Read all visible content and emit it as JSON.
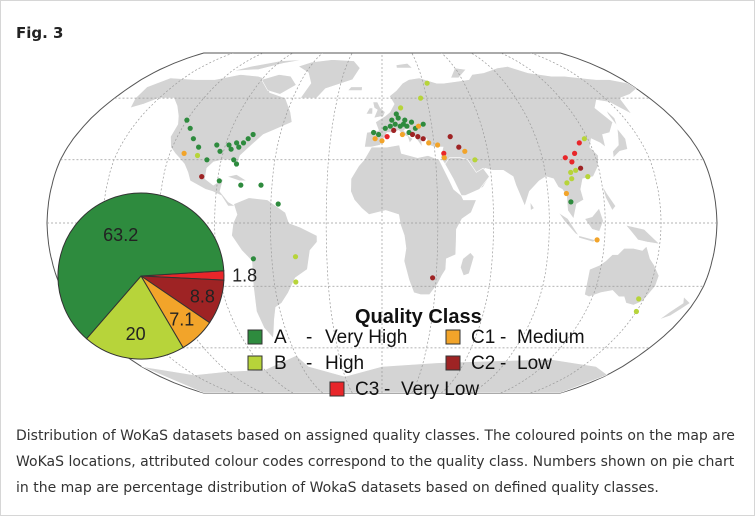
{
  "figure_label": "Fig. 3",
  "caption": "Distribution of WoKaS datasets based on assigned quality classes. The coloured points on the map are WoKaS locations, attributed colour codes correspond to the quality class. Numbers shown on pie chart in the map are percentage distribution of WokaS datasets based on defined quality classes.",
  "map": {
    "projection": "robinson",
    "graticule": true,
    "land_color": "#d4d4d4",
    "ocean_color": "#ffffff"
  },
  "legend": {
    "title": "Quality Class",
    "items": [
      {
        "code": "A",
        "name": "Very High",
        "color": "#2e8b3e",
        "sep": "-"
      },
      {
        "code": "B",
        "name": "High",
        "color": "#b7d43a",
        "sep": "-"
      },
      {
        "code": "C1",
        "name": "Medium",
        "color": "#f2a42a",
        "sep": "-"
      },
      {
        "code": "C2",
        "name": "Low",
        "color": "#9e2324",
        "sep": "-"
      },
      {
        "code": "C3",
        "name": "Very Low",
        "color": "#e8262a",
        "sep": "-"
      }
    ]
  },
  "chart_data": {
    "type": "pie",
    "labels": [
      "A - Very High",
      "B - High",
      "C1 - Medium",
      "C2 - Low",
      "C3 - Very Low"
    ],
    "values": [
      63.2,
      20,
      7.1,
      8.8,
      1.8
    ],
    "value_labels": [
      "63.2",
      "20",
      "7.1",
      "8.8",
      "1.8"
    ],
    "colors": [
      "#2e8b3e",
      "#b7d43a",
      "#f2a42a",
      "#9e2324",
      "#e8262a"
    ]
  },
  "locations": [
    {
      "lon": -120,
      "lat": 49,
      "class": "A"
    },
    {
      "lon": -115,
      "lat": 45,
      "class": "A"
    },
    {
      "lon": -110,
      "lat": 40,
      "class": "A"
    },
    {
      "lon": -105,
      "lat": 36,
      "class": "A"
    },
    {
      "lon": -112,
      "lat": 33,
      "class": "C1"
    },
    {
      "lon": -104,
      "lat": 32,
      "class": "B"
    },
    {
      "lon": -98,
      "lat": 30,
      "class": "A"
    },
    {
      "lon": -95,
      "lat": 37,
      "class": "A"
    },
    {
      "lon": -92,
      "lat": 34,
      "class": "A"
    },
    {
      "lon": -88,
      "lat": 37,
      "class": "A"
    },
    {
      "lon": -86,
      "lat": 35,
      "class": "A"
    },
    {
      "lon": -84,
      "lat": 38,
      "class": "A"
    },
    {
      "lon": -82,
      "lat": 36,
      "class": "A"
    },
    {
      "lon": -80,
      "lat": 38,
      "class": "A"
    },
    {
      "lon": -78,
      "lat": 40,
      "class": "A"
    },
    {
      "lon": -76,
      "lat": 42,
      "class": "A"
    },
    {
      "lon": -83,
      "lat": 30,
      "class": "A"
    },
    {
      "lon": -81,
      "lat": 28,
      "class": "A"
    },
    {
      "lon": -99,
      "lat": 22,
      "class": "C2"
    },
    {
      "lon": -89,
      "lat": 20,
      "class": "A"
    },
    {
      "lon": -77,
      "lat": 18,
      "class": "A"
    },
    {
      "lon": -66,
      "lat": 18,
      "class": "A"
    },
    {
      "lon": -56,
      "lat": 9,
      "class": "A"
    },
    {
      "lon": -47,
      "lat": -16,
      "class": "B"
    },
    {
      "lon": -70,
      "lat": -17,
      "class": "A"
    },
    {
      "lon": -48,
      "lat": -28,
      "class": "B"
    },
    {
      "lon": -5,
      "lat": 43,
      "class": "A"
    },
    {
      "lon": -2,
      "lat": 42,
      "class": "A"
    },
    {
      "lon": 2,
      "lat": 45,
      "class": "A"
    },
    {
      "lon": 5,
      "lat": 46,
      "class": "A"
    },
    {
      "lon": 8,
      "lat": 47,
      "class": "A"
    },
    {
      "lon": 11,
      "lat": 46,
      "class": "A"
    },
    {
      "lon": 13,
      "lat": 47,
      "class": "A"
    },
    {
      "lon": 15,
      "lat": 46,
      "class": "A"
    },
    {
      "lon": 6,
      "lat": 49,
      "class": "A"
    },
    {
      "lon": 10,
      "lat": 50,
      "class": "A"
    },
    {
      "lon": 14,
      "lat": 49,
      "class": "A"
    },
    {
      "lon": 18,
      "lat": 48,
      "class": "A"
    },
    {
      "lon": 20,
      "lat": 45,
      "class": "A"
    },
    {
      "lon": 16,
      "lat": 43,
      "class": "A"
    },
    {
      "lon": 12,
      "lat": 42,
      "class": "C1"
    },
    {
      "lon": 18,
      "lat": 42,
      "class": "C2"
    },
    {
      "lon": 21,
      "lat": 41,
      "class": "C2"
    },
    {
      "lon": 24,
      "lat": 40,
      "class": "C2"
    },
    {
      "lon": 22,
      "lat": 46,
      "class": "C1"
    },
    {
      "lon": 25,
      "lat": 47,
      "class": "A"
    },
    {
      "lon": -4,
      "lat": 40,
      "class": "C1"
    },
    {
      "lon": 0,
      "lat": 39,
      "class": "C1"
    },
    {
      "lon": 3,
      "lat": 41,
      "class": "C3"
    },
    {
      "lon": 7,
      "lat": 44,
      "class": "C2"
    },
    {
      "lon": 9,
      "lat": 52,
      "class": "A"
    },
    {
      "lon": 12,
      "lat": 55,
      "class": "B"
    },
    {
      "lon": 26,
      "lat": 60,
      "class": "B"
    },
    {
      "lon": 33,
      "lat": 68,
      "class": "B"
    },
    {
      "lon": 27,
      "lat": 38,
      "class": "C1"
    },
    {
      "lon": 32,
      "lat": 37,
      "class": "C1"
    },
    {
      "lon": 35,
      "lat": 33,
      "class": "C3"
    },
    {
      "lon": 35,
      "lat": 31,
      "class": "C1"
    },
    {
      "lon": 44,
      "lat": 36,
      "class": "C2"
    },
    {
      "lon": 47,
      "lat": 34,
      "class": "C1"
    },
    {
      "lon": 52,
      "lat": 30,
      "class": "B"
    },
    {
      "lon": 40,
      "lat": 41,
      "class": "C2"
    },
    {
      "lon": 103,
      "lat": 31,
      "class": "C3"
    },
    {
      "lon": 106,
      "lat": 29,
      "class": "C3"
    },
    {
      "lon": 109,
      "lat": 33,
      "class": "C3"
    },
    {
      "lon": 110,
      "lat": 26,
      "class": "C2"
    },
    {
      "lon": 107,
      "lat": 25,
      "class": "B"
    },
    {
      "lon": 104,
      "lat": 24,
      "class": "B"
    },
    {
      "lon": 104,
      "lat": 21,
      "class": "B"
    },
    {
      "lon": 101,
      "lat": 19,
      "class": "B"
    },
    {
      "lon": 100,
      "lat": 14,
      "class": "C1"
    },
    {
      "lon": 102,
      "lat": 10,
      "class": "A"
    },
    {
      "lon": 113,
      "lat": 22,
      "class": "B"
    },
    {
      "lon": 114,
      "lat": 38,
      "class": "C3"
    },
    {
      "lon": 118,
      "lat": 40,
      "class": "B"
    },
    {
      "lon": 116,
      "lat": -8,
      "class": "C1"
    },
    {
      "lon": 28,
      "lat": -26,
      "class": "C2"
    },
    {
      "lon": 147,
      "lat": -36,
      "class": "B"
    },
    {
      "lon": 150,
      "lat": -42,
      "class": "B"
    }
  ]
}
